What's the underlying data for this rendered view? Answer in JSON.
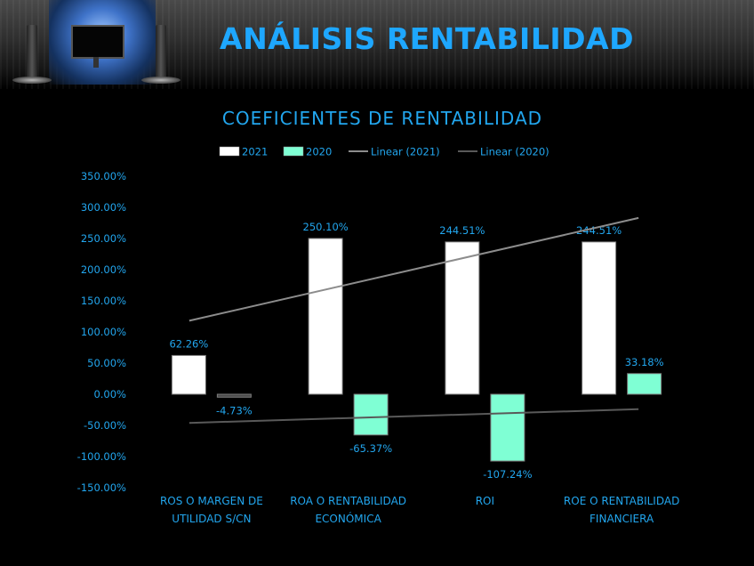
{
  "page": {
    "title": "ANÁLISIS RENTABILIDAD"
  },
  "colors": {
    "background": "#000000",
    "title": "#1ea7ff",
    "text": "#22a6ee",
    "series_2021": "#ffffff",
    "series_2020": "#7fffd4",
    "linear_2021": "#8c8c8c",
    "linear_2020": "#595959"
  },
  "chart_data": {
    "type": "bar",
    "title": "COEFICIENTES DE RENTABILIDAD",
    "categories": [
      [
        "ROS O MARGEN DE",
        "UTILIDAD S/CN"
      ],
      [
        "ROA O RENTABILIDAD",
        "ECONÓMICA"
      ],
      [
        "ROI"
      ],
      [
        "ROE O RENTABILIDAD",
        "FINANCIERA"
      ]
    ],
    "series": [
      {
        "name": "2021",
        "values": [
          62.26,
          250.1,
          244.51,
          244.51
        ],
        "labels": [
          "62.26%",
          "250.10%",
          "244.51%",
          "244.51%"
        ]
      },
      {
        "name": "2020",
        "values": [
          -4.73,
          -65.37,
          -107.24,
          33.18
        ],
        "labels": [
          "-4.73%",
          "-65.37%",
          "-107.24%",
          "33.18%"
        ]
      }
    ],
    "trendlines": [
      {
        "name": "Linear (2021)",
        "of_series": "2021",
        "start_value": 118,
        "end_value": 283
      },
      {
        "name": "Linear (2020)",
        "of_series": "2020",
        "start_value": -46,
        "end_value": -24
      }
    ],
    "ylim": [
      -150,
      350
    ],
    "yticks": [
      -150,
      -100,
      -50,
      0,
      50,
      100,
      150,
      200,
      250,
      300,
      350
    ],
    "ytick_labels": [
      "-150.00%",
      "-100.00%",
      "-50.00%",
      "0.00%",
      "50.00%",
      "100.00%",
      "150.00%",
      "200.00%",
      "250.00%",
      "300.00%",
      "350.00%"
    ],
    "legend_position": "top",
    "grid": false
  }
}
